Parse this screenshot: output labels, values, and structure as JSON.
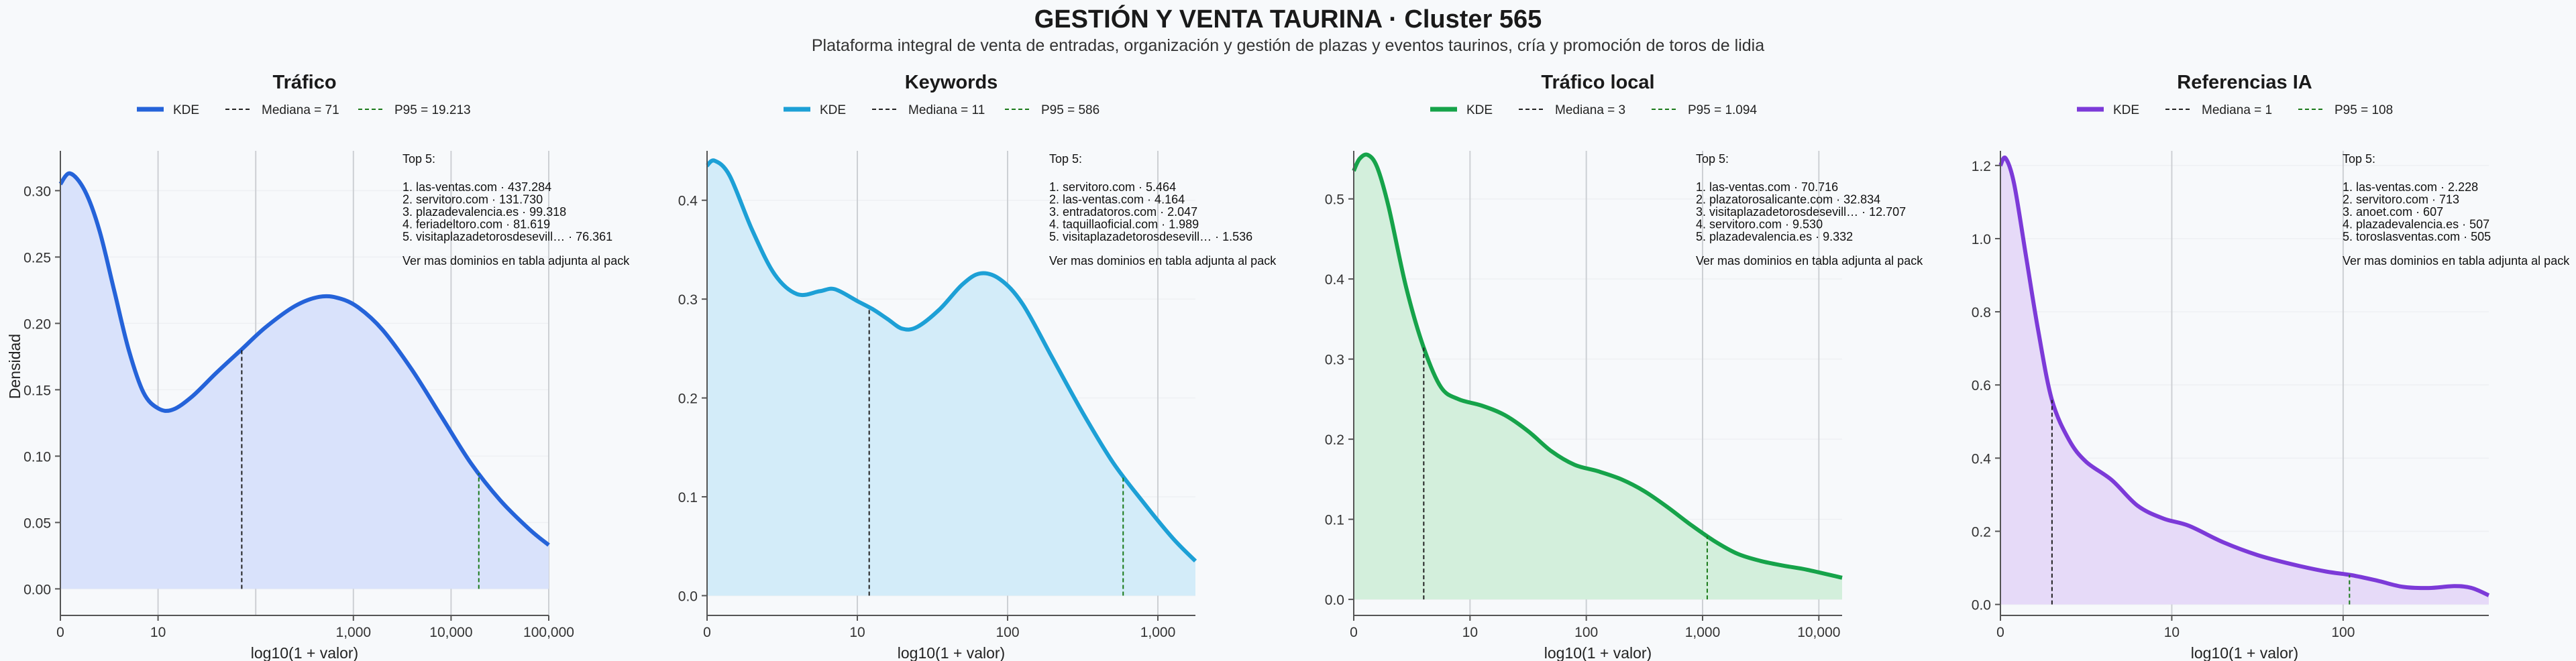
{
  "header": {
    "title": "GESTIÓN Y VENTA TAURINA · Cluster 565",
    "subtitle": "Plataforma integral de venta de entradas, organización y gestión de plazas y eventos taurinos, cría y promoción de toros de lidia"
  },
  "chart_data": [
    {
      "type": "area",
      "title": "Tráfico",
      "xlabel": "log10(1 + valor)",
      "ylabel": "Densidad",
      "color": "#2563d9",
      "fill": "#d9e2fb",
      "x_scale": "log10(1+x)",
      "xlim": [
        0,
        5
      ],
      "ylim": [
        -0.02,
        0.33
      ],
      "xticks": [
        0,
        1,
        2,
        3,
        4,
        5
      ],
      "xtick_labels": [
        "0",
        "10",
        "1,000",
        "10,000",
        "100,000"
      ],
      "xtick_positions": [
        0,
        1,
        3,
        4,
        5
      ],
      "minor_grid_x": [
        1,
        2,
        3,
        4,
        5
      ],
      "yticks": [
        0.0,
        0.05,
        0.1,
        0.15,
        0.2,
        0.25,
        0.3
      ],
      "ytick_labels": [
        "0.00",
        "0.05",
        "0.10",
        "0.15",
        "0.20",
        "0.25",
        "0.30"
      ],
      "legend": {
        "kde": "KDE",
        "median": "Mediana = 71",
        "p95": "P95 = 19.213"
      },
      "median_x": 1.857,
      "p95_x": 4.284,
      "kde_points": [
        [
          0,
          0.305
        ],
        [
          0.1,
          0.313
        ],
        [
          0.25,
          0.3
        ],
        [
          0.4,
          0.27
        ],
        [
          0.55,
          0.225
        ],
        [
          0.7,
          0.18
        ],
        [
          0.85,
          0.148
        ],
        [
          1.0,
          0.136
        ],
        [
          1.15,
          0.135
        ],
        [
          1.35,
          0.145
        ],
        [
          1.6,
          0.163
        ],
        [
          1.85,
          0.18
        ],
        [
          2.1,
          0.197
        ],
        [
          2.4,
          0.213
        ],
        [
          2.65,
          0.22
        ],
        [
          2.85,
          0.219
        ],
        [
          3.05,
          0.212
        ],
        [
          3.3,
          0.195
        ],
        [
          3.6,
          0.165
        ],
        [
          3.9,
          0.13
        ],
        [
          4.2,
          0.095
        ],
        [
          4.5,
          0.067
        ],
        [
          4.8,
          0.045
        ],
        [
          5.0,
          0.033
        ]
      ],
      "annotation": {
        "heading": "Top 5:",
        "items": [
          "1. las-ventas.com · 437.284",
          "2. servitoro.com · 131.730",
          "3. plazadevalencia.es · 99.318",
          "4. feriadeltoro.com · 81.619",
          "5. visitaplazadetorosdesevill… · 76.361"
        ],
        "footer": "Ver mas dominios en tabla adjunta al pack"
      }
    },
    {
      "type": "area",
      "title": "Keywords",
      "xlabel": "log10(1 + valor)",
      "ylabel": "",
      "color": "#1da0d6",
      "fill": "#d3ecf9",
      "x_scale": "log10(1+x)",
      "xlim": [
        0,
        3.25
      ],
      "ylim": [
        -0.02,
        0.45
      ],
      "xticks": [
        0,
        1,
        2,
        3
      ],
      "xtick_labels": [
        "0",
        "10",
        "100",
        "1,000"
      ],
      "xtick_positions": [
        0,
        1,
        2,
        3
      ],
      "minor_grid_x": [
        1,
        2,
        3
      ],
      "yticks": [
        0.0,
        0.1,
        0.2,
        0.3,
        0.4
      ],
      "ytick_labels": [
        "0.0",
        "0.1",
        "0.2",
        "0.3",
        "0.4"
      ],
      "legend": {
        "kde": "KDE",
        "median": "Mediana = 11",
        "p95": "P95 = 586"
      },
      "median_x": 1.079,
      "p95_x": 2.769,
      "kde_points": [
        [
          0,
          0.435
        ],
        [
          0.05,
          0.44
        ],
        [
          0.15,
          0.425
        ],
        [
          0.3,
          0.37
        ],
        [
          0.45,
          0.325
        ],
        [
          0.6,
          0.305
        ],
        [
          0.75,
          0.308
        ],
        [
          0.85,
          0.31
        ],
        [
          1.0,
          0.298
        ],
        [
          1.1,
          0.29
        ],
        [
          1.2,
          0.28
        ],
        [
          1.3,
          0.27
        ],
        [
          1.4,
          0.272
        ],
        [
          1.55,
          0.29
        ],
        [
          1.7,
          0.315
        ],
        [
          1.82,
          0.326
        ],
        [
          1.95,
          0.32
        ],
        [
          2.1,
          0.295
        ],
        [
          2.3,
          0.24
        ],
        [
          2.5,
          0.185
        ],
        [
          2.7,
          0.135
        ],
        [
          2.9,
          0.095
        ],
        [
          3.1,
          0.058
        ],
        [
          3.25,
          0.035
        ]
      ],
      "annotation": {
        "heading": "Top 5:",
        "items": [
          "1. servitoro.com · 5.464",
          "2. las-ventas.com · 4.164",
          "3. entradatoros.com · 2.047",
          "4. taquillaoficial.com · 1.989",
          "5. visitaplazadetorosdesevill… · 1.536"
        ],
        "footer": "Ver mas dominios en tabla adjunta al pack"
      }
    },
    {
      "type": "area",
      "title": "Tráfico local",
      "xlabel": "log10(1 + valor)",
      "ylabel": "",
      "color": "#16a34a",
      "fill": "#d3efdc",
      "x_scale": "log10(1+x)",
      "xlim": [
        0,
        4.2
      ],
      "ylim": [
        -0.02,
        0.56
      ],
      "xticks": [
        0,
        1,
        2,
        3,
        4
      ],
      "xtick_labels": [
        "0",
        "10",
        "100",
        "1,000",
        "10,000"
      ],
      "xtick_positions": [
        0,
        1,
        2,
        3,
        4
      ],
      "minor_grid_x": [
        1,
        2,
        3,
        4
      ],
      "yticks": [
        0.0,
        0.1,
        0.2,
        0.3,
        0.4,
        0.5
      ],
      "ytick_labels": [
        "0.0",
        "0.1",
        "0.2",
        "0.3",
        "0.4",
        "0.5"
      ],
      "legend": {
        "kde": "KDE",
        "median": "Mediana = 3",
        "p95": "P95 = 1.094"
      },
      "median_x": 0.602,
      "p95_x": 3.04,
      "kde_points": [
        [
          0,
          0.535
        ],
        [
          0.05,
          0.55
        ],
        [
          0.12,
          0.555
        ],
        [
          0.2,
          0.54
        ],
        [
          0.3,
          0.49
        ],
        [
          0.45,
          0.39
        ],
        [
          0.6,
          0.315
        ],
        [
          0.75,
          0.265
        ],
        [
          0.9,
          0.25
        ],
        [
          1.1,
          0.242
        ],
        [
          1.3,
          0.23
        ],
        [
          1.5,
          0.21
        ],
        [
          1.7,
          0.185
        ],
        [
          1.9,
          0.168
        ],
        [
          2.1,
          0.16
        ],
        [
          2.3,
          0.15
        ],
        [
          2.5,
          0.135
        ],
        [
          2.7,
          0.115
        ],
        [
          2.9,
          0.093
        ],
        [
          3.1,
          0.073
        ],
        [
          3.3,
          0.057
        ],
        [
          3.5,
          0.048
        ],
        [
          3.7,
          0.042
        ],
        [
          3.9,
          0.037
        ],
        [
          4.2,
          0.027
        ]
      ],
      "annotation": {
        "heading": "Top 5:",
        "items": [
          "1. las-ventas.com · 70.716",
          "2. plazatorosalicante.com · 32.834",
          "3. visitaplazadetorosdesevill… · 12.707",
          "4. servitoro.com · 9.530",
          "5. plazadevalencia.es · 9.332"
        ],
        "footer": "Ver mas dominios en tabla adjunta al pack"
      }
    },
    {
      "type": "area",
      "title": "Referencias IA",
      "xlabel": "log10(1 + valor)",
      "ylabel": "",
      "color": "#7c3ad8",
      "fill": "#e6daf8",
      "x_scale": "log10(1+x)",
      "xlim": [
        0,
        2.85
      ],
      "ylim": [
        -0.03,
        1.24
      ],
      "xticks": [
        0,
        1,
        2
      ],
      "xtick_labels": [
        "0",
        "10",
        "100"
      ],
      "xtick_positions": [
        0,
        1,
        2
      ],
      "minor_grid_x": [
        1,
        2
      ],
      "yticks": [
        0.0,
        0.2,
        0.4,
        0.6,
        0.8,
        1.0,
        1.2
      ],
      "ytick_labels": [
        "0.0",
        "0.2",
        "0.4",
        "0.6",
        "0.8",
        "1.0",
        "1.2"
      ],
      "legend": {
        "kde": "KDE",
        "median": "Mediana = 1",
        "p95": "P95 = 108"
      },
      "median_x": 0.301,
      "p95_x": 2.037,
      "kde_points": [
        [
          0,
          1.2
        ],
        [
          0.03,
          1.22
        ],
        [
          0.08,
          1.15
        ],
        [
          0.15,
          0.95
        ],
        [
          0.22,
          0.75
        ],
        [
          0.3,
          0.56
        ],
        [
          0.4,
          0.45
        ],
        [
          0.5,
          0.39
        ],
        [
          0.65,
          0.34
        ],
        [
          0.8,
          0.27
        ],
        [
          0.95,
          0.235
        ],
        [
          1.1,
          0.215
        ],
        [
          1.3,
          0.17
        ],
        [
          1.5,
          0.135
        ],
        [
          1.7,
          0.11
        ],
        [
          1.9,
          0.09
        ],
        [
          2.05,
          0.08
        ],
        [
          2.2,
          0.065
        ],
        [
          2.35,
          0.048
        ],
        [
          2.5,
          0.045
        ],
        [
          2.65,
          0.05
        ],
        [
          2.75,
          0.045
        ],
        [
          2.85,
          0.025
        ]
      ],
      "annotation": {
        "heading": "Top 5:",
        "items": [
          "1. las-ventas.com · 2.228",
          "2. servitoro.com · 713",
          "3. anoet.com · 607",
          "4. plazadevalencia.es · 507",
          "5. toroslasventas.com · 505"
        ],
        "footer": "Ver mas dominios en tabla adjunta al pack"
      }
    }
  ]
}
